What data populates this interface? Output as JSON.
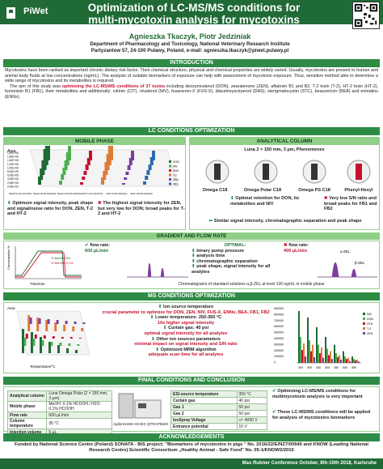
{
  "header": {
    "logo_text": "PiWet",
    "title_line1": "Optimization of LC-MS/MS conditions for",
    "title_line2": "multi-mycotoxin analysis for mycotoxins biomarkers",
    "authors": "Agnieszka Tkaczyk, Piotr Jedziniak",
    "affil1": "Department of Pharmacology and Toxicology, National Veterinary Research Institute",
    "affil2": "Partyzantow 57, 24-100 Pulawy, Poland, e-mail: agnieszka.tkaczyk@piwet.pulawy.pl"
  },
  "sections": {
    "introduction": "INTRODUCTION",
    "lc": "LC CONDITIONS OPTIMIZATION",
    "mobile": "MOBILE PHASE",
    "analytical": "ANALYTICAL COLUMN",
    "gradient": "GRADIENT AND FLOW RATE",
    "ms": "MS CONDITIONS OPTIMIZATION",
    "final": "FINAL CONDITIONS AND CONCLUSION",
    "ack": "ACKNOWLEDGEMENTS"
  },
  "intro": {
    "p1": "Mycotoxins have been ranked as important chronic dietary risk factor. Their chemical structure, physical and chemical properties are widely varied. Usually, mycotoxins are present in human and animal body fluids at low concentrations (ng/mL). The analysis of suitable biomarkers of exposure can help with assessment of mycotoxin exposure. Thus, sensitive method able to determine a wide range of mycotoxins and its metabolites is required.",
    "p2a": "The aim of this study was ",
    "p2b": "optimizing the LC-MS/MS conditions of 37 toxins",
    "p2c": " including deoxynivalenol (DON), zearalenone (ZEN), aflatoxin B1 and B2, T-2 toxin (T-2), HT-2 toxin (HT-2), fumonisin B1 (FB1), their metabolites and additionally: citrinin (CIT), nivalenol (NIV), fusarenon-X (FUS-X), diacetoxyscirpenol (DAS), sterigmatocystin (STC), beauvericin (BEA) and enniatins (ENNs)."
  },
  "mobile_phase": {
    "chart_title": "Area",
    "ylabels": [
      "1,80E+06",
      "1,60E+06",
      "1,40E+06",
      "1,20E+06",
      "1,00E+06",
      "8,00E+05",
      "6,00E+05",
      "4,00E+05",
      "2,00E+05",
      "0,00E+00"
    ],
    "series_labels": [
      "MeOH 0.1% HCOOH",
      "MeOH 5mM NH4OAc",
      "MeOH 10mM NH4OAc",
      "ACN 0.1% HCOOH",
      "ACN 5mM NH4OAc",
      "ACN 10mM NH4OAc"
    ],
    "legend": [
      "DON",
      "NIV",
      "DAS",
      "T-2",
      "ZEN",
      "FB1"
    ],
    "ok": "Optimum signal intensity, peak shape and signal/noise ratio for DON, ZEN, T-2 and HT-2",
    "no1": "The highest signal intensity for ZEN, but very low for DON;",
    "no2": "broad peaks for T-2 and HT-2"
  },
  "analytical_column": {
    "spec": "Luna 2 × 150 mm, 3 µm, Phenomenex",
    "c1": "Omega C18",
    "c2": "Omega Polar C18",
    "c3": "Omega PS C18",
    "c4": "Phenyl-Hexyl",
    "ok": "Optimal retention for DON, its metabolites and NIV",
    "no": "Very low S/N ratio and broad peaks for FB1 and FB2",
    "similar": "Similar signal intensity, chromatographic separation and peak shape"
  },
  "gradient": {
    "legend1": "% MeOH+5%",
    "legend2": "% MeOH+0.1%",
    "ylabel": "Concentration %",
    "xlabel": "Time/min",
    "flow_ok": "flow rate:",
    "flow_ok_val": "600 µL/min",
    "optimal": "OPTIMAL:",
    "o1": "binary pump pressure",
    "o2": "analysis time",
    "o3": "chromatographic separation",
    "o4": "peak shape, signal intensity for all analytes",
    "flow_no": "flow rate:",
    "flow_no_val": "400 µL/min",
    "zel": "α-ZEL",
    "bzel": "β-ZEL",
    "caption": "Chromatograms of standard solutions α,β-ZEL at level 100 ng/mL in mobile phase"
  },
  "ms": {
    "zlabel": "Area",
    "xlabel": "Temperature/°C",
    "legend": [
      "NIV",
      "DON",
      "OTA",
      "T-2",
      "ZEN"
    ],
    "i1": "Ion source temperature",
    "i1b": "crucial parameter to optimize for DON, ZEN, NIV, FUS-X, ENNs, BEA, FB1, FB2",
    "i2": "Lower temperature: 250-350 °C",
    "i2b": "10x higher signal intensity",
    "i3": "Curtain gas: 40 psi",
    "i3b": "optimal signal intensity for all analytes",
    "i4": "Other ion sources parameters",
    "i4b": "minimal impact on signal intensity and S/N ratio",
    "i5": "Optimized MRM algorithm",
    "i5b": "adequate scan time for all analytes",
    "bar_x": [
      "250",
      "300",
      "350",
      "400",
      "450",
      "500",
      "550"
    ],
    "bar_y": [
      "900000",
      "800000",
      "700000",
      "600000",
      "500000",
      "400000",
      "300000",
      "200000",
      "100000",
      "0"
    ],
    "bar_legend": [
      "NIV",
      "DON",
      "OTA",
      "T-2",
      "ZEN"
    ]
  },
  "final": {
    "t1": [
      [
        "Analytical column",
        "Luna Omega Polar (2 × 150 mm, 3 µm)"
      ],
      [
        "Mobile phase",
        "MeOH: 0.1% HCOOH / H2O: 0.1% HCOOH"
      ],
      [
        "Flow rate",
        "600 µL/min"
      ],
      [
        "Column temperature",
        "35 °C"
      ],
      [
        "Injection volume",
        "5 µL"
      ]
    ],
    "instr": "Agilent1260+SCIEX QTRAP6500",
    "t2": [
      [
        "ESI-source temperature",
        "350 °C"
      ],
      [
        "Curtain gas",
        "40 psi"
      ],
      [
        "Gas 1",
        "50 psi"
      ],
      [
        "Gas 2",
        "50 psi"
      ],
      [
        "IonSpray Voltage",
        "+/- 4000 V"
      ],
      [
        "Entrance potential",
        "10 V"
      ]
    ],
    "c1": "Optimizing LC-MS/MS conditions for multimycotoxin analysis is very important",
    "c2": "These LC-MS/MS conditions will be applied for analysis of mycotoxins biomarkers"
  },
  "ack": "Funded by National Science Centre (Poland) SONATA - BIS project: \"Biomarkers of mycotoxins in pigs \" No. 2016/22/E/NZ7/00640 and KNOW (Leading National Research Centre) Scientific Consortium „Healthy Animal - Safe Food\" No. 05-1/KNOW2/2015",
  "footer": "Max Rubner Conference October, 8th-10th 2018, Karlsruhe",
  "colors": {
    "dark": "#1f6a35",
    "bar": "#2e8b45",
    "sub": "#8fcf87",
    "red": "#c8102e"
  }
}
